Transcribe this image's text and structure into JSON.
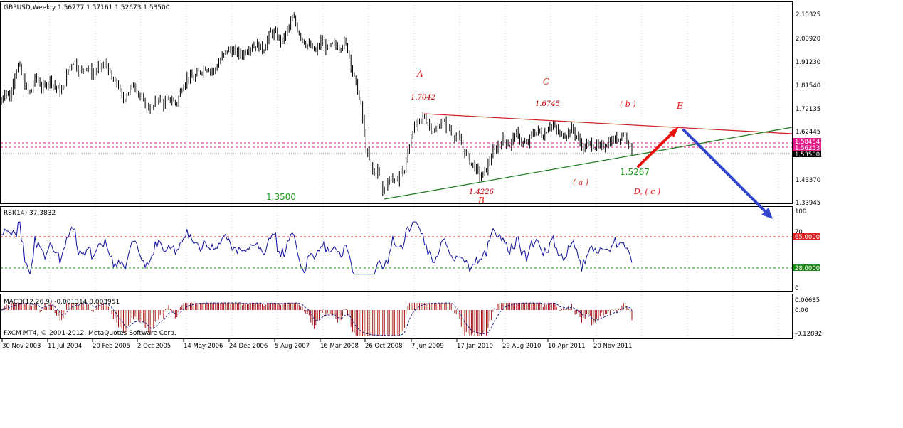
{
  "header": {
    "main": "GBPUSD,Weekly  1.56777 1.57161 1.52673 1.53500",
    "rsi": "RSI(14) 37.3832",
    "macd": "MACD(12,26,9) -0.001314 0.003951",
    "copyright": "FXCM MT4, © 2001-2012, MetaQuotes Software Corp."
  },
  "chart_data": [
    {
      "type": "candlestick",
      "name": "GBPUSD,Weekly",
      "ohlc_last": {
        "open": 1.56777,
        "high": 1.57161,
        "low": 1.52673,
        "close": 1.535
      },
      "x_labels": [
        "30 Nov 2003",
        "11 Jul 2004",
        "20 Feb 2005",
        "2 Oct 2005",
        "14 May 2006",
        "24 Dec 2006",
        "5 Aug 2007",
        "16 Mar 2008",
        "26 Oct 2008",
        "7 Jun 2009",
        "17 Jan 2010",
        "29 Aug 2010",
        "10 Apr 2011",
        "20 Nov 2011"
      ],
      "y_ticks": [
        "2.10325",
        "2.00920",
        "1.91230",
        "1.81540",
        "1.72135",
        "1.62445",
        "1.43370",
        "1.33945"
      ],
      "ylim": [
        1.33945,
        2.10325
      ],
      "price_path": [
        {
          "x": 0,
          "y": 1.74
        },
        {
          "x": 8,
          "y": 1.8
        },
        {
          "x": 14,
          "y": 1.76
        },
        {
          "x": 20,
          "y": 1.86
        },
        {
          "x": 26,
          "y": 1.9
        },
        {
          "x": 34,
          "y": 1.82
        },
        {
          "x": 42,
          "y": 1.78
        },
        {
          "x": 50,
          "y": 1.85
        },
        {
          "x": 60,
          "y": 1.8
        },
        {
          "x": 70,
          "y": 1.84
        },
        {
          "x": 80,
          "y": 1.8
        },
        {
          "x": 88,
          "y": 1.79
        },
        {
          "x": 96,
          "y": 1.88
        },
        {
          "x": 104,
          "y": 1.92
        },
        {
          "x": 112,
          "y": 1.86
        },
        {
          "x": 120,
          "y": 1.9
        },
        {
          "x": 130,
          "y": 1.86
        },
        {
          "x": 140,
          "y": 1.89
        },
        {
          "x": 150,
          "y": 1.9
        },
        {
          "x": 158,
          "y": 1.83
        },
        {
          "x": 166,
          "y": 1.82
        },
        {
          "x": 172,
          "y": 1.75
        },
        {
          "x": 180,
          "y": 1.79
        },
        {
          "x": 190,
          "y": 1.82
        },
        {
          "x": 198,
          "y": 1.76
        },
        {
          "x": 206,
          "y": 1.73
        },
        {
          "x": 214,
          "y": 1.72
        },
        {
          "x": 222,
          "y": 1.77
        },
        {
          "x": 230,
          "y": 1.74
        },
        {
          "x": 240,
          "y": 1.76
        },
        {
          "x": 248,
          "y": 1.74
        },
        {
          "x": 256,
          "y": 1.81
        },
        {
          "x": 264,
          "y": 1.85
        },
        {
          "x": 272,
          "y": 1.84
        },
        {
          "x": 280,
          "y": 1.87
        },
        {
          "x": 290,
          "y": 1.89
        },
        {
          "x": 300,
          "y": 1.87
        },
        {
          "x": 310,
          "y": 1.92
        },
        {
          "x": 320,
          "y": 1.96
        },
        {
          "x": 330,
          "y": 1.95
        },
        {
          "x": 340,
          "y": 1.94
        },
        {
          "x": 350,
          "y": 1.97
        },
        {
          "x": 360,
          "y": 1.98
        },
        {
          "x": 370,
          "y": 1.96
        },
        {
          "x": 380,
          "y": 2.03
        },
        {
          "x": 388,
          "y": 2.02
        },
        {
          "x": 396,
          "y": 1.99
        },
        {
          "x": 404,
          "y": 2.04
        },
        {
          "x": 412,
          "y": 2.09
        },
        {
          "x": 420,
          "y": 2.03
        },
        {
          "x": 428,
          "y": 1.99
        },
        {
          "x": 436,
          "y": 1.97
        },
        {
          "x": 444,
          "y": 1.95
        },
        {
          "x": 452,
          "y": 2.0
        },
        {
          "x": 460,
          "y": 1.96
        },
        {
          "x": 468,
          "y": 1.98
        },
        {
          "x": 476,
          "y": 1.97
        },
        {
          "x": 484,
          "y": 1.99
        },
        {
          "x": 490,
          "y": 1.95
        },
        {
          "x": 496,
          "y": 1.86
        },
        {
          "x": 502,
          "y": 1.8
        },
        {
          "x": 508,
          "y": 1.72
        },
        {
          "x": 514,
          "y": 1.56
        },
        {
          "x": 520,
          "y": 1.5
        },
        {
          "x": 526,
          "y": 1.45
        },
        {
          "x": 532,
          "y": 1.48
        },
        {
          "x": 538,
          "y": 1.38
        },
        {
          "x": 544,
          "y": 1.42
        },
        {
          "x": 550,
          "y": 1.45
        },
        {
          "x": 556,
          "y": 1.41
        },
        {
          "x": 562,
          "y": 1.47
        },
        {
          "x": 568,
          "y": 1.46
        },
        {
          "x": 574,
          "y": 1.56
        },
        {
          "x": 580,
          "y": 1.64
        },
        {
          "x": 588,
          "y": 1.66
        },
        {
          "x": 596,
          "y": 1.69
        },
        {
          "x": 604,
          "y": 1.65
        },
        {
          "x": 612,
          "y": 1.62
        },
        {
          "x": 620,
          "y": 1.67
        },
        {
          "x": 628,
          "y": 1.65
        },
        {
          "x": 636,
          "y": 1.62
        },
        {
          "x": 644,
          "y": 1.6
        },
        {
          "x": 652,
          "y": 1.55
        },
        {
          "x": 660,
          "y": 1.51
        },
        {
          "x": 668,
          "y": 1.48
        },
        {
          "x": 676,
          "y": 1.44
        },
        {
          "x": 684,
          "y": 1.48
        },
        {
          "x": 692,
          "y": 1.54
        },
        {
          "x": 700,
          "y": 1.57
        },
        {
          "x": 708,
          "y": 1.6
        },
        {
          "x": 716,
          "y": 1.57
        },
        {
          "x": 724,
          "y": 1.62
        },
        {
          "x": 732,
          "y": 1.59
        },
        {
          "x": 740,
          "y": 1.57
        },
        {
          "x": 748,
          "y": 1.62
        },
        {
          "x": 756,
          "y": 1.63
        },
        {
          "x": 764,
          "y": 1.61
        },
        {
          "x": 772,
          "y": 1.66
        },
        {
          "x": 780,
          "y": 1.64
        },
        {
          "x": 788,
          "y": 1.61
        },
        {
          "x": 796,
          "y": 1.62
        },
        {
          "x": 804,
          "y": 1.64
        },
        {
          "x": 812,
          "y": 1.6
        },
        {
          "x": 820,
          "y": 1.56
        },
        {
          "x": 828,
          "y": 1.58
        },
        {
          "x": 836,
          "y": 1.57
        },
        {
          "x": 844,
          "y": 1.56
        },
        {
          "x": 852,
          "y": 1.58
        },
        {
          "x": 860,
          "y": 1.59
        },
        {
          "x": 868,
          "y": 1.6
        },
        {
          "x": 876,
          "y": 1.62
        },
        {
          "x": 882,
          "y": 1.6
        },
        {
          "x": 889,
          "y": 1.535
        }
      ],
      "levels": {
        "pink_upper": "1.58454",
        "pink_lower": "1.56253",
        "close": "1.53500"
      },
      "annotations": [
        {
          "label": "A",
          "color": "#e01010"
        },
        {
          "label": "1.7042",
          "color": "#c00000"
        },
        {
          "label": "C",
          "color": "#e01010"
        },
        {
          "label": "1.6745",
          "color": "#c00000"
        },
        {
          "label": "( b )",
          "color": "#e01010"
        },
        {
          "label": "E",
          "color": "#e01010"
        },
        {
          "label": "1.4226",
          "color": "#c00000"
        },
        {
          "label": "B",
          "color": "#e01010"
        },
        {
          "label": "( a )",
          "color": "#e01010"
        },
        {
          "label": "D, ( c )",
          "color": "#e01010"
        },
        {
          "label": "1.5267",
          "color": "#1a9a1a"
        },
        {
          "label": "1.3500",
          "color": "#1a9a1a"
        }
      ]
    },
    {
      "type": "line",
      "name": "RSI(14)",
      "last": 37.3832,
      "ylim": [
        0,
        100
      ],
      "y_ticks": [
        "100",
        "70",
        "0"
      ],
      "levels": [
        "65.0000",
        "28.0000"
      ]
    },
    {
      "type": "histogram",
      "name": "MACD(12,26,9)",
      "main": -0.001314,
      "signal": 0.003951,
      "y_ticks": [
        "0.06685",
        "0.00",
        "-0.12892"
      ]
    }
  ],
  "colors": {
    "trend_upper": "#cc2020",
    "trend_lower": "#1a7a1a",
    "arrow_up": "#ee1111",
    "arrow_down": "#3344cc",
    "pink": "#e0208a",
    "rsi_line": "#1010a0",
    "macd": "#a01010"
  }
}
